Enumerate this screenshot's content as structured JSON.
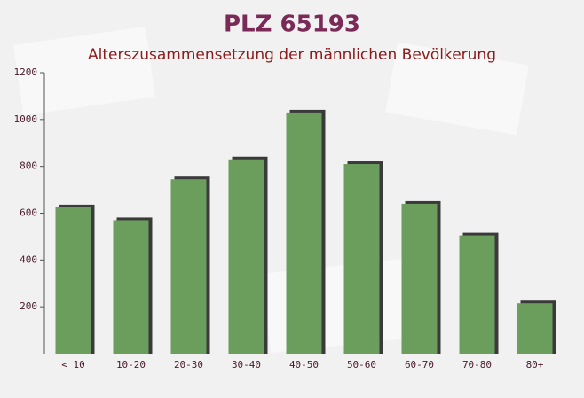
{
  "chart_data": {
    "type": "bar",
    "title": "PLZ 65193",
    "subtitle": "Alterszusammensetzung der männlichen Bevölkerung",
    "categories": [
      "< 10",
      "10-20",
      "20-30",
      "30-40",
      "40-50",
      "50-60",
      "60-70",
      "70-80",
      "80+"
    ],
    "values": [
      625,
      570,
      745,
      830,
      1030,
      810,
      640,
      505,
      215
    ],
    "color": "#6b9e5c",
    "ylim": [
      0,
      1200
    ],
    "yticks": [
      200,
      400,
      600,
      800,
      1000,
      1200
    ]
  }
}
